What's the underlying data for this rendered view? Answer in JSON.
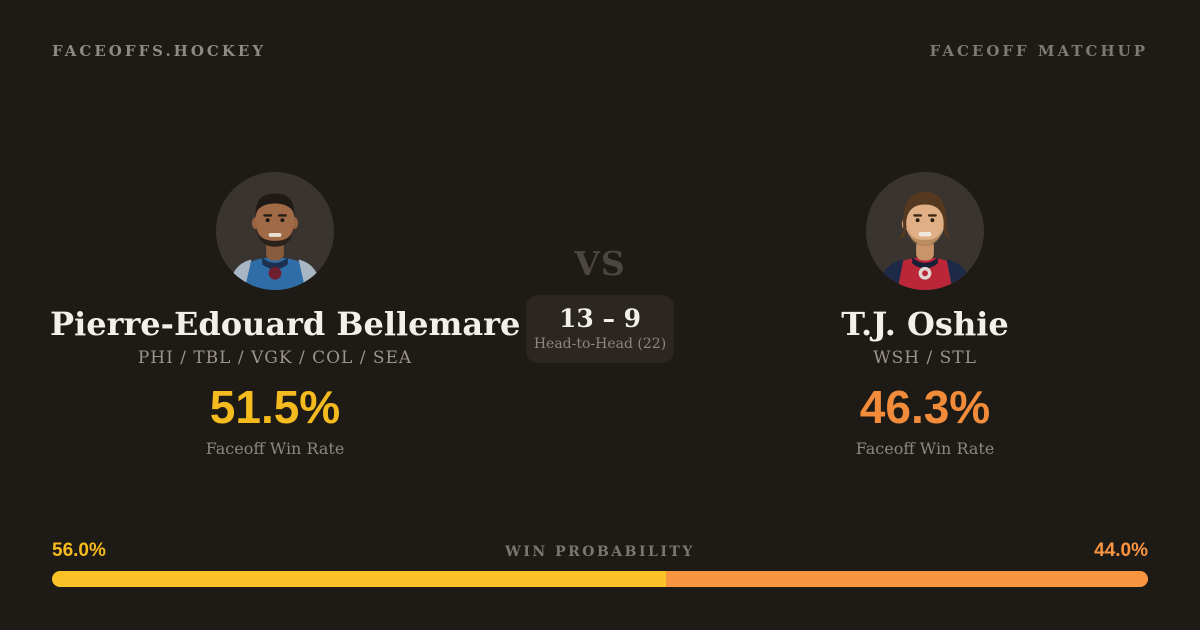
{
  "header": {
    "brand": "FACEOFFS.HOCKEY",
    "page_label": "FACEOFF MATCHUP"
  },
  "players": {
    "left": {
      "name": "Pierre-Edouard Bellemare",
      "teams": "PHI / TBL / VGK / COL / SEA",
      "win_rate": "51.5%",
      "win_rate_label": "Faceoff Win Rate",
      "avatar": "bellemare-portrait",
      "accent_color": "#f5ba1e"
    },
    "right": {
      "name": "T.J. Oshie",
      "teams": "WSH / STL",
      "win_rate": "46.3%",
      "win_rate_label": "Faceoff Win Rate",
      "avatar": "oshie-portrait",
      "accent_color": "#f28c3a"
    }
  },
  "matchup": {
    "vs_label": "VS",
    "head_to_head_score": "13 – 9",
    "head_to_head_label": "Head-to-Head (22)"
  },
  "win_probability": {
    "label": "WIN PROBABILITY",
    "left_value": "56.0%",
    "right_value": "44.0%",
    "left_percent": 56.0,
    "right_percent": 44.0,
    "left_bar_color": "#fbc227",
    "right_bar_color": "#f99440"
  },
  "colors": {
    "background": "#1e1a16",
    "card_box": "#2b2622",
    "text_primary": "#f3efe9",
    "text_muted": "#8b8680"
  }
}
